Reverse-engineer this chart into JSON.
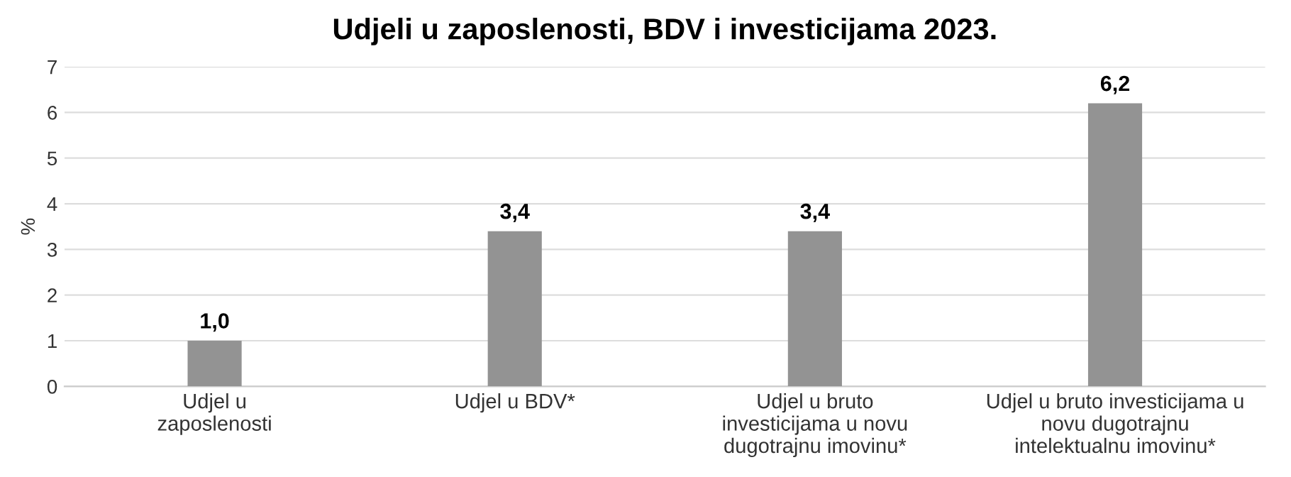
{
  "chart_data": {
    "type": "bar",
    "title": "Udjeli u zaposlenosti, BDV i investicijama 2023.",
    "ylabel": "%",
    "categories": [
      "Udjel u\nzaposlenosti",
      "Udjel u BDV*",
      "Udjel u bruto\ninvesticijama u novu\ndugotrajnu imovinu*",
      "Udjel u bruto investicijama u\nnovu dugotrajnu\nintelektualnu imovinu*"
    ],
    "values": [
      1.0,
      3.4,
      3.4,
      6.2
    ],
    "value_labels": [
      "1,0",
      "3,4",
      "3,4",
      "6,2"
    ],
    "color": "#939393",
    "ylim": [
      0,
      7
    ],
    "yticks": [
      0,
      1,
      2,
      3,
      4,
      5,
      6,
      7
    ],
    "grid": "y"
  }
}
